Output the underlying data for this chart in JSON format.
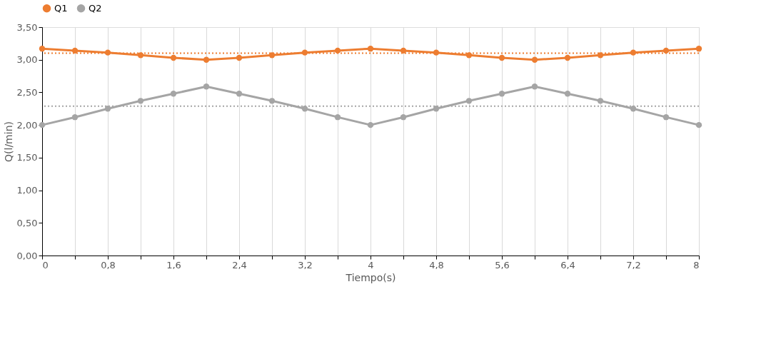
{
  "chart_data": {
    "type": "line",
    "xlabel": "Tiempo(s)",
    "ylabel": "Q(l/min)",
    "x": [
      0,
      0.4,
      0.8,
      1.2,
      1.6,
      2,
      2.4,
      2.8,
      3.2,
      3.6,
      4,
      4.4,
      4.8,
      5.2,
      5.6,
      6,
      6.4,
      6.8,
      7.2,
      7.6,
      8
    ],
    "series": [
      {
        "name": "Q1",
        "color": "#ed7d31",
        "values": [
          3.17,
          3.14,
          3.11,
          3.07,
          3.03,
          3.0,
          3.03,
          3.07,
          3.11,
          3.14,
          3.17,
          3.14,
          3.11,
          3.07,
          3.03,
          3.0,
          3.03,
          3.07,
          3.11,
          3.14,
          3.17
        ]
      },
      {
        "name": "Q2",
        "color": "#a5a5a5",
        "values": [
          2.0,
          2.12,
          2.25,
          2.37,
          2.48,
          2.59,
          2.48,
          2.37,
          2.25,
          2.12,
          2.0,
          2.12,
          2.25,
          2.37,
          2.48,
          2.59,
          2.48,
          2.37,
          2.25,
          2.12,
          2.0
        ]
      }
    ],
    "xlim": [
      0,
      8
    ],
    "xticks": [
      {
        "value": 0,
        "label": "0"
      },
      {
        "value": 0.4,
        "label": null
      },
      {
        "value": 0.8,
        "label": "0,8"
      },
      {
        "value": 1.2,
        "label": null
      },
      {
        "value": 1.6,
        "label": "1,6"
      },
      {
        "value": 2,
        "label": null
      },
      {
        "value": 2.4,
        "label": "2,4"
      },
      {
        "value": 2.8,
        "label": null
      },
      {
        "value": 3.2,
        "label": "3,2"
      },
      {
        "value": 3.6,
        "label": null
      },
      {
        "value": 4,
        "label": "4"
      },
      {
        "value": 4.4,
        "label": null
      },
      {
        "value": 4.8,
        "label": "4,8"
      },
      {
        "value": 5.2,
        "label": null
      },
      {
        "value": 5.6,
        "label": "5,6"
      },
      {
        "value": 6,
        "label": null
      },
      {
        "value": 6.4,
        "label": "6,4"
      },
      {
        "value": 6.8,
        "label": null
      },
      {
        "value": 7.2,
        "label": "7,2"
      },
      {
        "value": 7.6,
        "label": null
      },
      {
        "value": 8,
        "label": "8"
      }
    ],
    "ylim": [
      0,
      3.5
    ],
    "yticks": [
      {
        "value": 0,
        "label": "0,00"
      },
      {
        "value": 0.5,
        "label": "0,50"
      },
      {
        "value": 1,
        "label": "1,00"
      },
      {
        "value": 1.5,
        "label": "1,50"
      },
      {
        "value": 2,
        "label": "2,00"
      },
      {
        "value": 2.5,
        "label": "2,50"
      },
      {
        "value": 3,
        "label": "3,00"
      },
      {
        "value": 3.5,
        "label": "3,50"
      }
    ],
    "ref_lines": [
      {
        "axis": "y",
        "value": 3.1,
        "color": "#ed7d31",
        "line_style": "dotted"
      },
      {
        "axis": "y",
        "value": 2.29,
        "color": "#a5a5a5",
        "line_style": "dotted"
      }
    ],
    "grid": "x",
    "legend": "top",
    "marker": "circle",
    "line_style": "solid"
  }
}
